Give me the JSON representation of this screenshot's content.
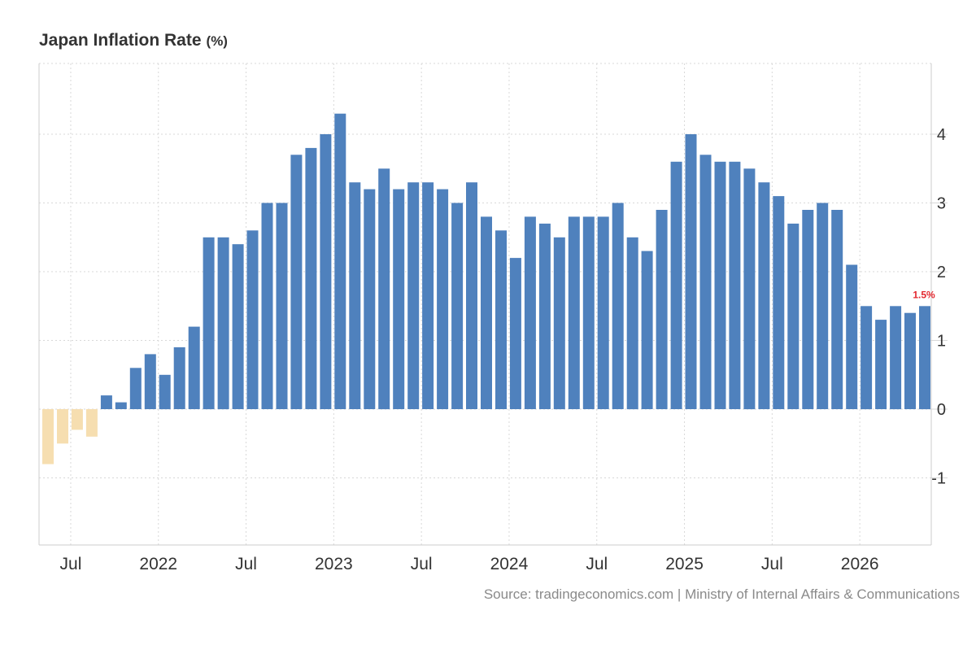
{
  "title": "Japan Inflation Rate",
  "title_unit": "(%)",
  "source": "Source: tradingeconomics.com | Ministry of Internal Affairs & Communications",
  "colors": {
    "positive": "#4f81bd",
    "negative": "#f6deb0",
    "last_label": "#e3262d",
    "grid": "#d8d8d8",
    "axis": "#cccccc",
    "tick_text": "#333333"
  },
  "chart_data": {
    "type": "bar",
    "title": "Japan Inflation Rate",
    "unit": "(%)",
    "ylim": [
      -2,
      5
    ],
    "y_ticks": [
      -1,
      0,
      1,
      2,
      3,
      4
    ],
    "y_axis_position": "right",
    "grid": true,
    "x_tick_labels": [
      "Jul",
      "2022",
      "Jul",
      "2023",
      "Jul",
      "2024",
      "Jul",
      "2025",
      "Jul",
      "2026"
    ],
    "last_value_label": "1.5%",
    "categories": [
      "2021-05",
      "2021-06",
      "2021-07",
      "2021-08",
      "2021-09",
      "2021-10",
      "2021-11",
      "2021-12",
      "2022-01",
      "2022-02",
      "2022-03",
      "2022-04",
      "2022-05",
      "2022-06",
      "2022-07",
      "2022-08",
      "2022-09",
      "2022-10",
      "2022-11",
      "2022-12",
      "2023-01",
      "2023-02",
      "2023-03",
      "2023-04",
      "2023-05",
      "2023-06",
      "2023-07",
      "2023-08",
      "2023-09",
      "2023-10",
      "2023-11",
      "2023-12",
      "2024-01",
      "2024-02",
      "2024-03",
      "2024-04",
      "2024-05",
      "2024-06",
      "2024-07",
      "2024-08",
      "2024-09",
      "2024-10",
      "2024-11",
      "2024-12",
      "2025-01",
      "2025-02",
      "2025-03",
      "2025-04",
      "2025-05",
      "2025-06",
      "2025-07",
      "2025-08",
      "2025-09",
      "2025-10",
      "2025-11",
      "2025-12",
      "2026-01",
      "2026-02",
      "2026-03",
      "2026-04",
      "2026-05"
    ],
    "values": [
      -0.8,
      -0.5,
      -0.3,
      -0.4,
      0.2,
      0.1,
      0.6,
      0.8,
      0.5,
      0.9,
      1.2,
      2.5,
      2.5,
      2.4,
      2.6,
      3.0,
      3.0,
      3.7,
      3.8,
      4.0,
      4.3,
      3.3,
      3.2,
      3.5,
      3.2,
      3.3,
      3.3,
      3.2,
      3.0,
      3.3,
      2.8,
      2.6,
      2.2,
      2.8,
      2.7,
      2.5,
      2.8,
      2.8,
      2.8,
      3.0,
      2.5,
      2.3,
      2.9,
      3.6,
      4.0,
      3.7,
      3.6,
      3.6,
      3.5,
      3.3,
      3.1,
      2.7,
      2.9,
      3.0,
      2.9,
      2.1,
      1.5,
      1.3,
      1.5,
      1.4,
      1.5
    ]
  }
}
